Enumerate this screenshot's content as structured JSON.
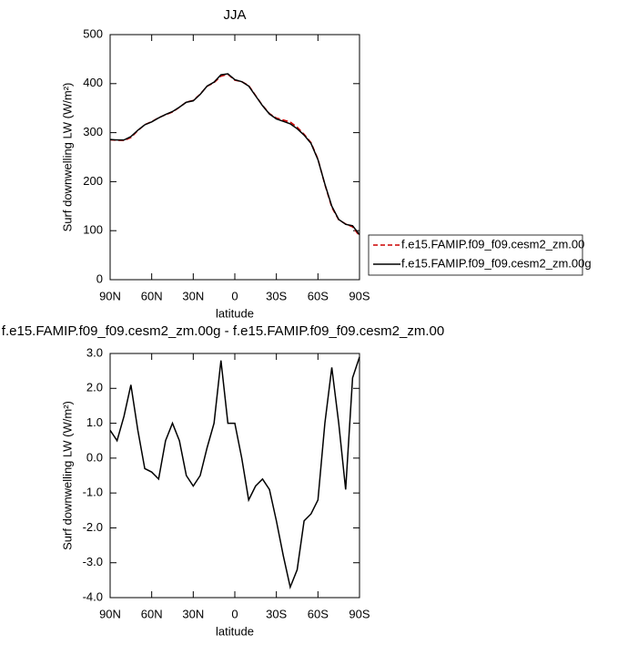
{
  "chart_data": [
    {
      "type": "line",
      "title": "JJA",
      "xlabel": "latitude",
      "ylabel": "Surf downwelling LW (W/m²)",
      "x": [
        90,
        85,
        80,
        75,
        70,
        65,
        60,
        55,
        50,
        45,
        40,
        35,
        30,
        25,
        20,
        15,
        10,
        5,
        0,
        -5,
        -10,
        -15,
        -20,
        -25,
        -30,
        -35,
        -40,
        -45,
        -50,
        -55,
        -60,
        -65,
        -70,
        -75,
        -80,
        -85,
        -90
      ],
      "series": [
        {
          "name": "f.e15.FAMIP.f09_f09.cesm2_zm.00",
          "color": "#cc0000",
          "dash": true,
          "values": [
            285.2,
            284.5,
            283.8,
            289.9,
            304.2,
            316.3,
            322.4,
            330.6,
            336.5,
            342,
            351.5,
            362.5,
            365.8,
            378.5,
            394.7,
            402,
            415.2,
            419,
            407,
            404,
            396.2,
            375.8,
            355.6,
            338.9,
            329.8,
            325.8,
            321.7,
            311.2,
            296.8,
            279.6,
            246.2,
            194,
            147.4,
            122,
            113.9,
            107.7,
            89.1
          ]
        },
        {
          "name": "f.e15.FAMIP.f09_f09.cesm2_zm.00g",
          "color": "#000000",
          "dash": false,
          "values": [
            286,
            285,
            285,
            292,
            305,
            316,
            322,
            330,
            337,
            343,
            352,
            362,
            365,
            378,
            395,
            403,
            418,
            420,
            408,
            404,
            395,
            375,
            355,
            338,
            328,
            323,
            318,
            308,
            295,
            278,
            245,
            195,
            150,
            123,
            113,
            110,
            92
          ]
        }
      ],
      "xlim": [
        90,
        -90
      ],
      "xticks": [
        {
          "value": 90,
          "label": "90N"
        },
        {
          "value": 60,
          "label": "60N"
        },
        {
          "value": 30,
          "label": "30N"
        },
        0,
        {
          "value": -30,
          "label": "30S"
        },
        {
          "value": -60,
          "label": "60S"
        },
        {
          "value": -90,
          "label": "90S"
        }
      ],
      "ylim": [
        0,
        500
      ],
      "yticks": [
        0,
        100,
        200,
        300,
        400,
        500
      ],
      "legend": "outside-right-bottom"
    },
    {
      "type": "line",
      "title": "f.e15.FAMIP.f09_f09.cesm2_zm.00g - f.e15.FAMIP.f09_f09.cesm2_zm.00",
      "xlabel": "latitude",
      "ylabel": "Surf downwelling LW (W/m²)",
      "x": [
        90,
        85,
        80,
        75,
        70,
        65,
        60,
        55,
        50,
        45,
        40,
        35,
        30,
        25,
        20,
        15,
        10,
        5,
        0,
        -5,
        -10,
        -15,
        -20,
        -25,
        -30,
        -35,
        -40,
        -45,
        -50,
        -55,
        -60,
        -65,
        -70,
        -75,
        -80,
        -85,
        -90
      ],
      "series": [
        {
          "color": "#000000",
          "dash": false,
          "values": [
            0.8,
            0.5,
            1.2,
            2.1,
            0.8,
            -0.3,
            -0.4,
            -0.6,
            0.5,
            1,
            0.5,
            -0.5,
            -0.8,
            -0.5,
            0.3,
            1,
            2.8,
            1,
            1,
            0,
            -1.2,
            -0.8,
            -0.6,
            -0.9,
            -1.8,
            -2.8,
            -3.7,
            -3.2,
            -1.8,
            -1.6,
            -1.2,
            1,
            2.6,
            1,
            -0.9,
            2.3,
            2.9
          ]
        }
      ],
      "xlim": [
        90,
        -90
      ],
      "xticks": [
        {
          "value": 90,
          "label": "90N"
        },
        {
          "value": 60,
          "label": "60N"
        },
        {
          "value": 30,
          "label": "30N"
        },
        0,
        {
          "value": -30,
          "label": "30S"
        },
        {
          "value": -60,
          "label": "60S"
        },
        {
          "value": -90,
          "label": "90S"
        }
      ],
      "ylim": [
        -4,
        3
      ],
      "yticks": [
        {
          "value": -4,
          "label": "-4.0"
        },
        {
          "value": -3,
          "label": "-3.0"
        },
        {
          "value": -2,
          "label": "-2.0"
        },
        {
          "value": -1,
          "label": "-1.0"
        },
        {
          "value": 0,
          "label": "0.0"
        },
        {
          "value": 1,
          "label": "1.0"
        },
        {
          "value": 2,
          "label": "2.0"
        },
        {
          "value": 3,
          "label": "3.0"
        }
      ]
    }
  ]
}
